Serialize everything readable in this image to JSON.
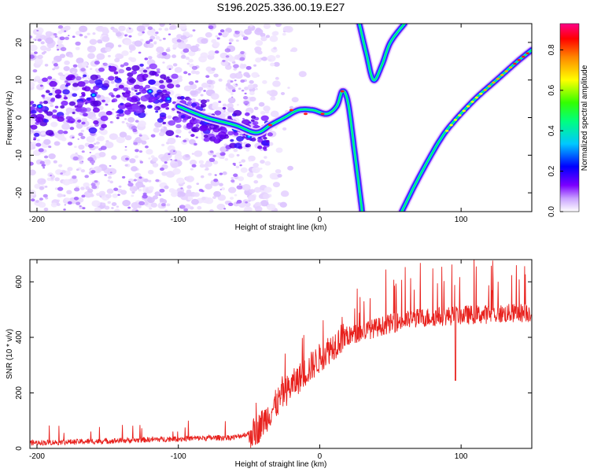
{
  "figure": {
    "title": "S196.2025.336.00.19.E27"
  },
  "chart_data": [
    {
      "type": "heatmap",
      "name": "spectrogram",
      "xlabel": "Height of straight line (km)",
      "ylabel": "Frequency (Hz)",
      "xlim": [
        -205,
        150
      ],
      "ylim": [
        -25,
        25
      ],
      "xticks": [
        -200,
        -100,
        0,
        100
      ],
      "yticks": [
        -20,
        -10,
        0,
        10,
        20
      ],
      "colorbar": {
        "label": "Normalized spectral amplitude",
        "range": [
          0.0,
          0.93
        ],
        "ticks": [
          0.0,
          0.2,
          0.4,
          0.6,
          0.8
        ],
        "colors": [
          "#ffffff",
          "#7b00ff",
          "#0000ff",
          "#00e5ff",
          "#00ff00",
          "#ffff00",
          "#ff8800",
          "#ff0000",
          "#ff0088"
        ]
      },
      "features": {
        "noise_region_x": [
          -205,
          -50
        ],
        "noise_band_center": [
          [
            -200,
            2
          ],
          [
            -150,
            5
          ],
          [
            -120,
            8
          ],
          [
            -100,
            3
          ],
          [
            -80,
            -2
          ],
          [
            -60,
            -4
          ]
        ],
        "main_ridge": [
          [
            -100,
            3
          ],
          [
            -80,
            0
          ],
          [
            -60,
            -2
          ],
          [
            -45,
            -4
          ],
          [
            -35,
            -2
          ],
          [
            -25,
            0
          ],
          [
            -15,
            2
          ],
          [
            -5,
            2
          ],
          [
            5,
            1
          ],
          [
            12,
            3
          ],
          [
            16,
            7
          ],
          [
            20,
            4
          ],
          [
            25,
            -10
          ],
          [
            30,
            -25
          ]
        ],
        "upper_v": [
          [
            28,
            25
          ],
          [
            33,
            17
          ],
          [
            38,
            10
          ],
          [
            44,
            14
          ],
          [
            50,
            20
          ],
          [
            60,
            25
          ]
        ],
        "rising_ridge": [
          [
            58,
            -25
          ],
          [
            70,
            -16
          ],
          [
            85,
            -6
          ],
          [
            95,
            -1
          ],
          [
            110,
            5
          ],
          [
            125,
            10
          ],
          [
            140,
            15
          ],
          [
            150,
            18
          ]
        ]
      }
    },
    {
      "type": "line",
      "name": "snr",
      "xlabel": "Height of straight line (km)",
      "ylabel": "SNR (10 * v/v)",
      "xlim": [
        -205,
        150
      ],
      "ylim": [
        0,
        680
      ],
      "xticks": [
        -200,
        -100,
        0,
        100
      ],
      "yticks": [
        0,
        200,
        400,
        600
      ],
      "color": "#e8211d",
      "series": [
        {
          "name": "SNR",
          "baseline": [
            [
              -205,
              20
            ],
            [
              -160,
              25
            ],
            [
              -100,
              35
            ],
            [
              -60,
              40
            ],
            [
              -45,
              60
            ],
            [
              -35,
              130
            ],
            [
              -25,
              200
            ],
            [
              -15,
              250
            ],
            [
              -5,
              300
            ],
            [
              5,
              350
            ],
            [
              15,
              395
            ],
            [
              30,
              420
            ],
            [
              50,
              450
            ],
            [
              70,
              470
            ],
            [
              100,
              480
            ],
            [
              130,
              485
            ],
            [
              150,
              490
            ]
          ]
        }
      ],
      "annotations": [
        {
          "x": 96,
          "y": 245,
          "label": ""
        }
      ]
    }
  ]
}
